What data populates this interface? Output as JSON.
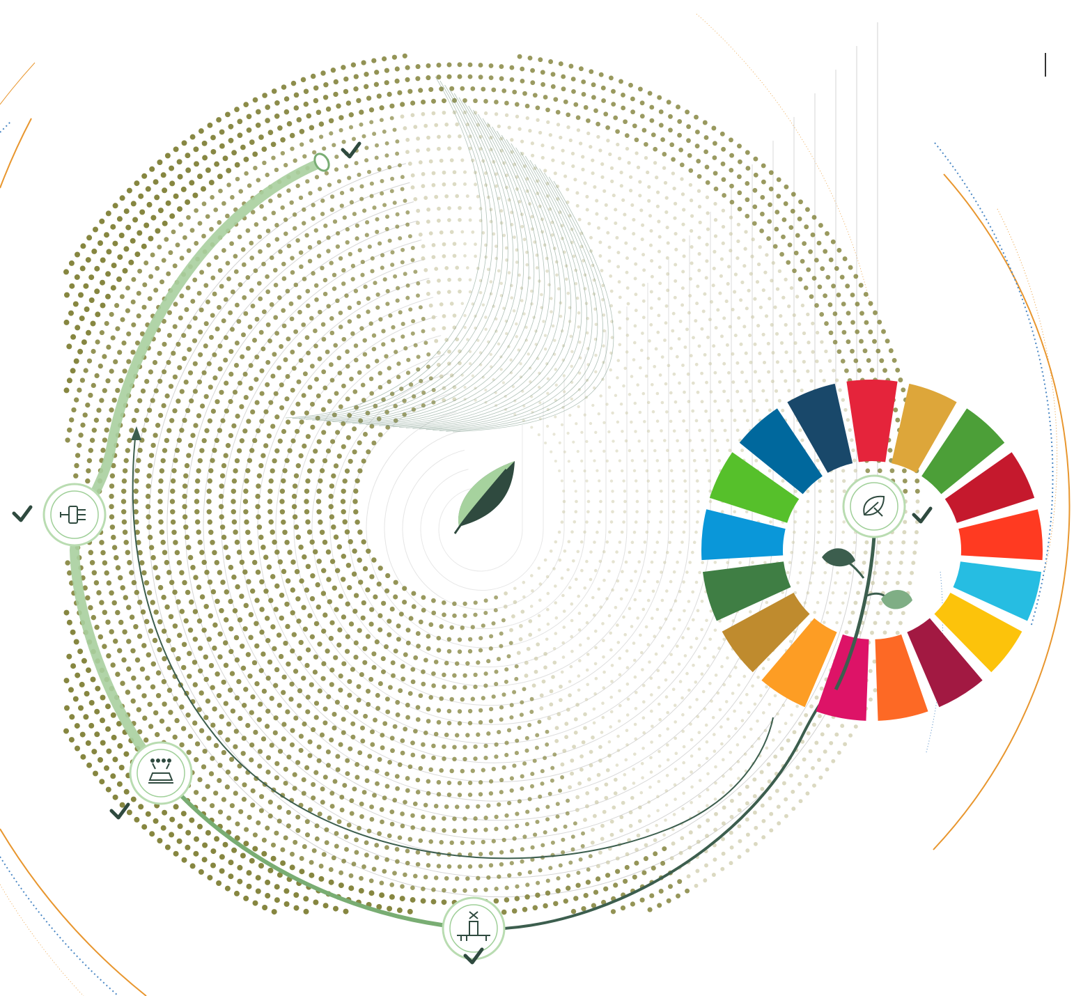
{
  "colors": {
    "dot_dark": "#7f7f36",
    "dot_light": "#c9c6a2",
    "arc_light_green": "#a9cf9f",
    "arc_mid_green": "#79ad73",
    "arc_dark_green": "#3c5e4e",
    "leaf_dark": "#2f4a3f",
    "leaf_light": "#9fcf98",
    "orange_accent": "#e8962e",
    "blue_accent": "#4a87c4",
    "check": "#2f4a3f",
    "grey_line": "#b8b8b8"
  },
  "center": {
    "icon": "leaf-icon"
  },
  "milestones": [
    {
      "id": "plug",
      "icon": "power-plug-icon",
      "checked": true
    },
    {
      "id": "tractor",
      "icon": "tractor-icon",
      "checked": true
    },
    {
      "id": "pump",
      "icon": "water-pump-icon",
      "checked": true
    },
    {
      "id": "eco",
      "icon": "eco-leaf-icon",
      "checked": true
    },
    {
      "id": "arc-end",
      "icon": "arc-end-icon",
      "checked": true
    }
  ],
  "sdg_wheel": {
    "segments": 17,
    "colors": [
      "#e5243b",
      "#dda63a",
      "#4c9f38",
      "#c5192d",
      "#ff3a21",
      "#26bde2",
      "#fcc30b",
      "#a21942",
      "#fd6925",
      "#dd1367",
      "#fd9d24",
      "#bf8b2e",
      "#3f7e44",
      "#0a97d9",
      "#56c02b",
      "#00689d",
      "#19486a"
    ]
  }
}
